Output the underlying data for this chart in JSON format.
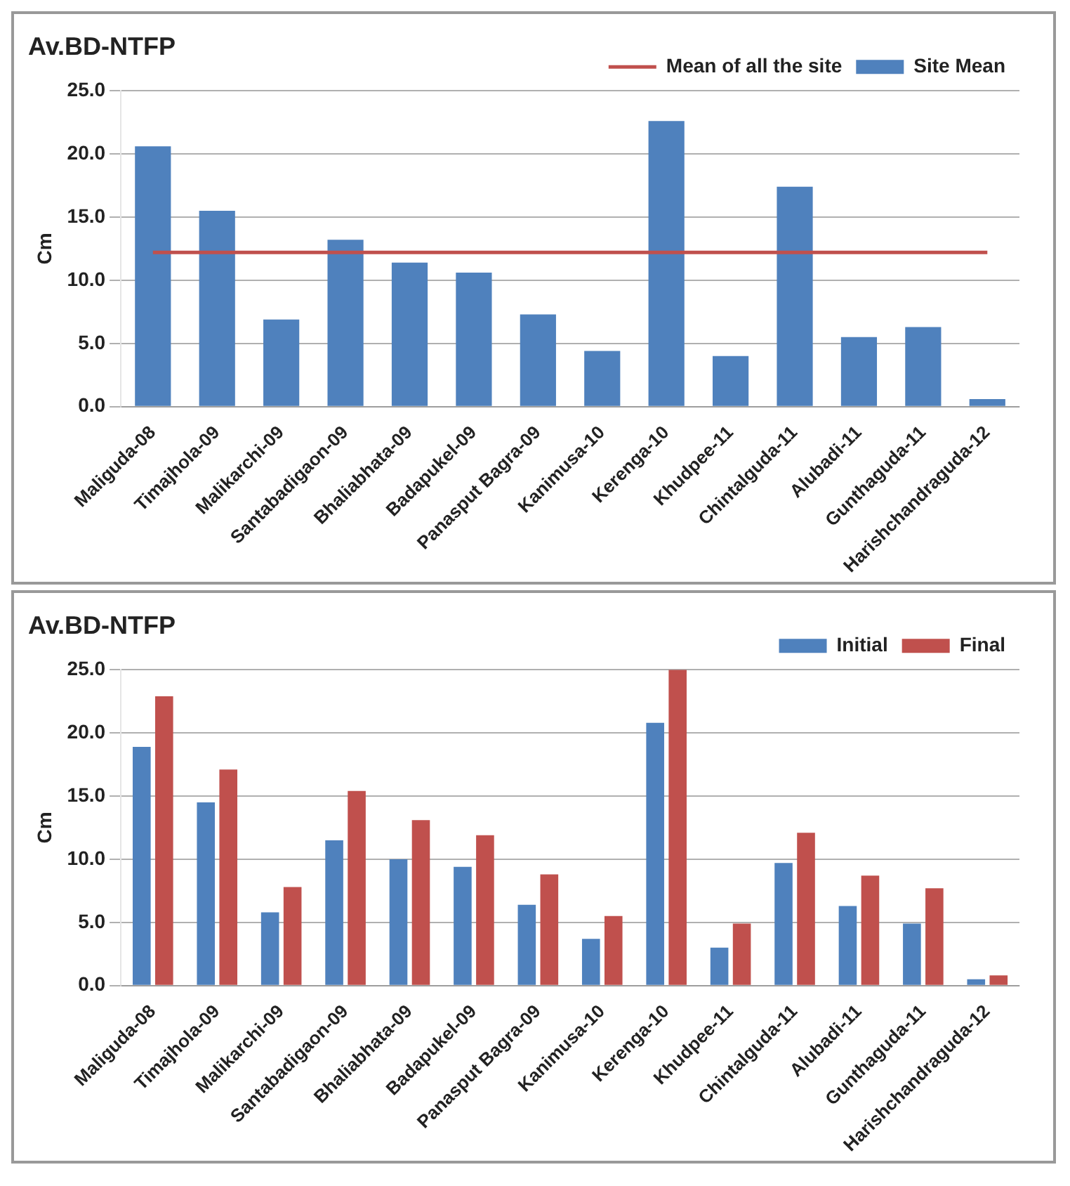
{
  "chart_data": [
    {
      "type": "bar",
      "title": "Av.BD-NTFP",
      "ylabel": "Cm",
      "categories": [
        "Maliguda-08",
        "Timajhola-09",
        "Malikarchi-09",
        "Santabadigaon-09",
        "Bhaliabhata-09",
        "Badapukel-09",
        "Panasput Bagra-09",
        "Kanimusa-10",
        "Kerenga-10",
        "Khudpee-11",
        "Chintalguda-11",
        "Alubadi-11",
        "Gunthaguda-11",
        "Harishchandraguda-12"
      ],
      "series": [
        {
          "name": "Site Mean",
          "color": "#4f81bd",
          "values": [
            20.6,
            15.5,
            6.9,
            13.2,
            11.4,
            10.6,
            7.3,
            4.4,
            22.6,
            4.0,
            17.4,
            5.5,
            6.3,
            0.6
          ]
        },
        {
          "name": "Mean of all the site",
          "type": "line",
          "color": "#c0504d",
          "values": [
            12.2,
            12.2,
            12.2,
            12.2,
            12.2,
            12.2,
            12.2,
            12.2,
            12.2,
            12.2,
            12.2,
            12.2,
            12.2,
            12.2
          ]
        }
      ],
      "ylim": [
        0,
        25
      ],
      "yticks": [
        {
          "value": 0,
          "label": "0.0"
        },
        {
          "value": 5,
          "label": "5.0"
        },
        {
          "value": 10,
          "label": "10.0"
        },
        {
          "value": 15,
          "label": "15.0"
        },
        {
          "value": 20,
          "label": "20.0"
        },
        {
          "value": 25,
          "label": "25.0"
        }
      ],
      "grid": "y",
      "legend": "top right"
    },
    {
      "type": "bar",
      "title": "Av.BD-NTFP",
      "ylabel": "Cm",
      "categories": [
        "Maliguda-08",
        "Timajhola-09",
        "Malikarchi-09",
        "Santabadigaon-09",
        "Bhaliabhata-09",
        "Badapukel-09",
        "Panasput Bagra-09",
        "Kanimusa-10",
        "Kerenga-10",
        "Khudpee-11",
        "Chintalguda-11",
        "Alubadi-11",
        "Gunthaguda-11",
        "Harishchandraguda-12"
      ],
      "series": [
        {
          "name": "Initial",
          "color": "#4f81bd",
          "values": [
            18.9,
            14.5,
            5.8,
            11.5,
            10.0,
            9.4,
            6.4,
            3.7,
            20.8,
            3.0,
            9.7,
            6.3,
            4.9,
            0.5
          ]
        },
        {
          "name": "Final",
          "color": "#c0504d",
          "values": [
            22.9,
            17.1,
            7.8,
            15.4,
            13.1,
            11.9,
            8.8,
            5.5,
            25.0,
            4.9,
            12.1,
            8.7,
            7.7,
            0.8
          ]
        }
      ],
      "ylim": [
        0,
        25
      ],
      "yticks": [
        {
          "value": 0,
          "label": "0.0"
        },
        {
          "value": 5,
          "label": "5.0"
        },
        {
          "value": 10,
          "label": "10.0"
        },
        {
          "value": 15,
          "label": "15.0"
        },
        {
          "value": 20,
          "label": "20.0"
        },
        {
          "value": 25,
          "label": "25.0"
        }
      ],
      "grid": "y",
      "legend": "top right"
    }
  ]
}
